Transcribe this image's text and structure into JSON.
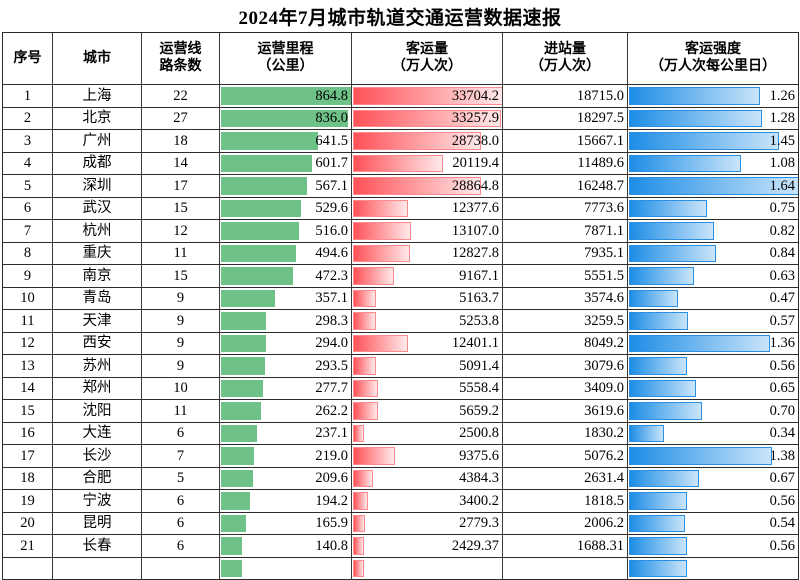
{
  "title": "2024年7月城市轨道交通运营数据速报",
  "colors": {
    "bar_green": "#6EC287",
    "bar_red": "#FF5157",
    "bar_red_light": "#FFE9EA",
    "bar_red_border": "#FF8A8E",
    "bar_blue": "#1D8DE6",
    "bar_blue_light": "#C9E4F9",
    "bar_blue_border": "#2B90E3"
  },
  "table": {
    "headers": [
      {
        "line1": "序号",
        "line2": ""
      },
      {
        "line1": "城市",
        "line2": ""
      },
      {
        "line1": "运营线",
        "line2": "路条数"
      },
      {
        "line1": "运营里程",
        "line2": "（公里）"
      },
      {
        "line1": "客运量",
        "line2": "（万人次）"
      },
      {
        "line1": "进站量",
        "line2": "（万人次）"
      },
      {
        "line1": "客运强度",
        "line2": "（万人次每公里日）"
      }
    ],
    "rows": [
      {
        "seq": "1",
        "city": "上海",
        "lines": "22",
        "mileage": "864.8",
        "volume": "33704.2",
        "entries": "18715.0",
        "intensity": "1.26"
      },
      {
        "seq": "2",
        "city": "北京",
        "lines": "27",
        "mileage": "836.0",
        "volume": "33257.9",
        "entries": "18297.5",
        "intensity": "1.28"
      },
      {
        "seq": "3",
        "city": "广州",
        "lines": "18",
        "mileage": "641.5",
        "volume": "28738.0",
        "entries": "15667.1",
        "intensity": "1.45"
      },
      {
        "seq": "4",
        "city": "成都",
        "lines": "14",
        "mileage": "601.7",
        "volume": "20119.4",
        "entries": "11489.6",
        "intensity": "1.08"
      },
      {
        "seq": "5",
        "city": "深圳",
        "lines": "17",
        "mileage": "567.1",
        "volume": "28864.8",
        "entries": "16248.7",
        "intensity": "1.64"
      },
      {
        "seq": "6",
        "city": "武汉",
        "lines": "15",
        "mileage": "529.6",
        "volume": "12377.6",
        "entries": "7773.6",
        "intensity": "0.75"
      },
      {
        "seq": "7",
        "city": "杭州",
        "lines": "12",
        "mileage": "516.0",
        "volume": "13107.0",
        "entries": "7871.1",
        "intensity": "0.82"
      },
      {
        "seq": "8",
        "city": "重庆",
        "lines": "11",
        "mileage": "494.6",
        "volume": "12827.8",
        "entries": "7935.1",
        "intensity": "0.84"
      },
      {
        "seq": "9",
        "city": "南京",
        "lines": "15",
        "mileage": "472.3",
        "volume": "9167.1",
        "entries": "5551.5",
        "intensity": "0.63"
      },
      {
        "seq": "10",
        "city": "青岛",
        "lines": "9",
        "mileage": "357.1",
        "volume": "5163.7",
        "entries": "3574.6",
        "intensity": "0.47"
      },
      {
        "seq": "11",
        "city": "天津",
        "lines": "9",
        "mileage": "298.3",
        "volume": "5253.8",
        "entries": "3259.5",
        "intensity": "0.57"
      },
      {
        "seq": "12",
        "city": "西安",
        "lines": "9",
        "mileage": "294.0",
        "volume": "12401.1",
        "entries": "8049.2",
        "intensity": "1.36"
      },
      {
        "seq": "13",
        "city": "苏州",
        "lines": "9",
        "mileage": "293.5",
        "volume": "5091.4",
        "entries": "3079.6",
        "intensity": "0.56"
      },
      {
        "seq": "14",
        "city": "郑州",
        "lines": "10",
        "mileage": "277.7",
        "volume": "5558.4",
        "entries": "3409.0",
        "intensity": "0.65"
      },
      {
        "seq": "15",
        "city": "沈阳",
        "lines": "11",
        "mileage": "262.2",
        "volume": "5659.2",
        "entries": "3619.6",
        "intensity": "0.70"
      },
      {
        "seq": "16",
        "city": "大连",
        "lines": "6",
        "mileage": "237.1",
        "volume": "2500.8",
        "entries": "1830.2",
        "intensity": "0.34"
      },
      {
        "seq": "17",
        "city": "长沙",
        "lines": "7",
        "mileage": "219.0",
        "volume": "9375.6",
        "entries": "5076.2",
        "intensity": "1.38"
      },
      {
        "seq": "18",
        "city": "合肥",
        "lines": "5",
        "mileage": "209.6",
        "volume": "4384.3",
        "entries": "2631.4",
        "intensity": "0.67"
      },
      {
        "seq": "19",
        "city": "宁波",
        "lines": "6",
        "mileage": "194.2",
        "volume": "3400.2",
        "entries": "1818.5",
        "intensity": "0.56"
      },
      {
        "seq": "20",
        "city": "昆明",
        "lines": "6",
        "mileage": "165.9",
        "volume": "2779.3",
        "entries": "2006.2",
        "intensity": "0.54"
      },
      {
        "seq": "21",
        "city": "长春",
        "lines": "6",
        "mileage": "140.8",
        "volume": "2429.37",
        "entries": "1688.31",
        "intensity": "0.56"
      }
    ],
    "partial_bottom_row": {
      "mileage_pct": 16.3,
      "volume_pct": 7.2,
      "intensity_pct": 34.1
    }
  },
  "chart_data": {
    "type": "table",
    "title": "2024年7月城市轨道交通运营数据速报",
    "columns": [
      "序号",
      "城市",
      "运营线路条数",
      "运营里程（公里）",
      "客运量（万人次）",
      "进站量（万人次）",
      "客运强度（万人次每公里日）"
    ],
    "databar_columns": {
      "运营里程（公里）": {
        "style": "solid-green",
        "scale_min": 0,
        "scale_max": 864.8
      },
      "客运量（万人次）": {
        "style": "gradient-red",
        "scale_min": 0,
        "scale_max": 33704.2
      },
      "客运强度（万人次每公里日）": {
        "style": "gradient-blue",
        "scale_min": 0,
        "scale_max": 1.64
      }
    },
    "rows": [
      [
        1,
        "上海",
        22,
        864.8,
        33704.2,
        18715.0,
        1.26
      ],
      [
        2,
        "北京",
        27,
        836.0,
        33257.9,
        18297.5,
        1.28
      ],
      [
        3,
        "广州",
        18,
        641.5,
        28738.0,
        15667.1,
        1.45
      ],
      [
        4,
        "成都",
        14,
        601.7,
        20119.4,
        11489.6,
        1.08
      ],
      [
        5,
        "深圳",
        17,
        567.1,
        28864.8,
        16248.7,
        1.64
      ],
      [
        6,
        "武汉",
        15,
        529.6,
        12377.6,
        7773.6,
        0.75
      ],
      [
        7,
        "杭州",
        12,
        516.0,
        13107.0,
        7871.1,
        0.82
      ],
      [
        8,
        "重庆",
        11,
        494.6,
        12827.8,
        7935.1,
        0.84
      ],
      [
        9,
        "南京",
        15,
        472.3,
        9167.1,
        5551.5,
        0.63
      ],
      [
        10,
        "青岛",
        9,
        357.1,
        5163.7,
        3574.6,
        0.47
      ],
      [
        11,
        "天津",
        9,
        298.3,
        5253.8,
        3259.5,
        0.57
      ],
      [
        12,
        "西安",
        9,
        294.0,
        12401.1,
        8049.2,
        1.36
      ],
      [
        13,
        "苏州",
        9,
        293.5,
        5091.4,
        3079.6,
        0.56
      ],
      [
        14,
        "郑州",
        10,
        277.7,
        5558.4,
        3409.0,
        0.65
      ],
      [
        15,
        "沈阳",
        11,
        262.2,
        5659.2,
        3619.6,
        0.7
      ],
      [
        16,
        "大连",
        6,
        237.1,
        2500.8,
        1830.2,
        0.34
      ],
      [
        17,
        "长沙",
        7,
        219.0,
        9375.6,
        5076.2,
        1.38
      ],
      [
        18,
        "合肥",
        5,
        209.6,
        4384.3,
        2631.4,
        0.67
      ],
      [
        19,
        "宁波",
        6,
        194.2,
        3400.2,
        1818.5,
        0.56
      ],
      [
        20,
        "昆明",
        6,
        165.9,
        2779.3,
        2006.2,
        0.54
      ],
      [
        21,
        "长春",
        6,
        140.8,
        2429.37,
        1688.31,
        0.56
      ]
    ]
  }
}
